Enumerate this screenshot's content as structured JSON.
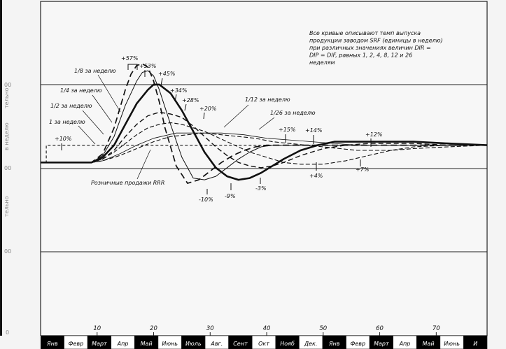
{
  "chart_data": {
    "type": "line",
    "note": "Все кривые описывают темп выпуска продукции заводом SRF (единицы в неделю) при различных значениях величин DIR = DIP = DIF, равных 1, 2, 4, 8, 12 и 26 неделям",
    "y_tick_labels": [
      "0",
      "00",
      "00",
      "00"
    ],
    "y_axis_fragments": [
      "в неделю",
      "тельно",
      "тельно"
    ],
    "x_ticks": [
      10,
      20,
      30,
      40,
      50,
      60,
      70
    ],
    "xlim": [
      0,
      79
    ],
    "ylim": [
      0,
      1.93
    ],
    "months": [
      "Янв",
      "Февр",
      "Март",
      "Апр",
      "Май",
      "Июнь",
      "Июль",
      "Авг.",
      "Сент",
      "Окт",
      "Нояб",
      "Дек.",
      "Янв",
      "Февр",
      "Март",
      "Апр",
      "Май",
      "Июнь",
      "И"
    ],
    "month_colors": [
      "#000000",
      "#ffffff"
    ],
    "retail_label": "Розничные продажи RRR",
    "series": [
      {
        "name": "1/8 за неделю",
        "style": "dashed-long",
        "x": [
          0,
          7,
          9,
          11,
          13,
          15,
          16,
          17,
          18,
          19,
          20,
          21,
          22,
          24,
          26,
          28,
          30,
          32,
          34,
          36,
          38,
          40,
          44,
          48,
          52,
          56,
          60,
          66,
          72,
          79
        ],
        "y": [
          1.0,
          1.0,
          1.0,
          1.05,
          1.2,
          1.42,
          1.51,
          1.56,
          1.57,
          1.55,
          1.47,
          1.35,
          1.2,
          0.98,
          0.88,
          0.9,
          0.95,
          1.0,
          1.04,
          1.07,
          1.09,
          1.1,
          1.1,
          1.1,
          1.1,
          1.1,
          1.1,
          1.1,
          1.1,
          1.1
        ]
      },
      {
        "name": "1/4 за неделю",
        "style": "solid-thin",
        "x": [
          0,
          7,
          9,
          11,
          13,
          15,
          17,
          18,
          19,
          20,
          21,
          23,
          25,
          27,
          29,
          31,
          33,
          35,
          37,
          39,
          41,
          44,
          48,
          52,
          56,
          60,
          66,
          72,
          79
        ],
        "y": [
          1.0,
          1.0,
          1.0,
          1.04,
          1.15,
          1.33,
          1.47,
          1.52,
          1.53,
          1.5,
          1.42,
          1.22,
          1.03,
          0.91,
          0.9,
          0.92,
          0.97,
          1.02,
          1.06,
          1.09,
          1.1,
          1.1,
          1.1,
          1.1,
          1.1,
          1.1,
          1.1,
          1.1,
          1.1
        ]
      },
      {
        "name": "1/2 за неделю",
        "style": "solid-thick",
        "x": [
          0,
          7,
          9,
          11,
          13,
          15,
          17,
          19,
          20,
          21,
          23,
          25,
          27,
          29,
          31,
          33,
          35,
          37,
          39,
          41,
          43,
          46,
          49,
          52,
          55,
          58,
          62,
          66,
          72,
          79
        ],
        "y": [
          1.0,
          1.0,
          1.0,
          1.03,
          1.1,
          1.22,
          1.34,
          1.42,
          1.45,
          1.45,
          1.4,
          1.3,
          1.18,
          1.06,
          0.97,
          0.92,
          0.9,
          0.91,
          0.94,
          0.98,
          1.02,
          1.07,
          1.1,
          1.12,
          1.12,
          1.12,
          1.12,
          1.12,
          1.11,
          1.1
        ]
      },
      {
        "name": "1 за неделю",
        "style": "dashed",
        "x": [
          0,
          7,
          9,
          11,
          13,
          15,
          17,
          19,
          21,
          23,
          25,
          27,
          29,
          31,
          33,
          35,
          37,
          39,
          41,
          43,
          46,
          50,
          54,
          58,
          62,
          66,
          72,
          79
        ],
        "y": [
          1.0,
          1.0,
          1.0,
          1.02,
          1.07,
          1.15,
          1.22,
          1.27,
          1.29,
          1.28,
          1.26,
          1.21,
          1.15,
          1.09,
          1.04,
          1.0,
          0.98,
          0.97,
          0.98,
          1.0,
          1.04,
          1.08,
          1.1,
          1.11,
          1.11,
          1.11,
          1.1,
          1.1
        ]
      },
      {
        "name": "1/12 за неделю",
        "style": "dashed-short",
        "x": [
          0,
          7,
          9,
          11,
          13,
          15,
          17,
          19,
          21,
          23,
          25,
          27,
          29,
          31,
          33,
          35,
          37,
          40,
          43,
          46,
          50,
          54,
          58,
          62,
          66,
          72,
          79
        ],
        "y": [
          1.0,
          1.0,
          1.0,
          1.02,
          1.06,
          1.11,
          1.16,
          1.2,
          1.22,
          1.23,
          1.22,
          1.2,
          1.18,
          1.15,
          1.12,
          1.09,
          1.06,
          1.03,
          1.0,
          0.99,
          0.99,
          1.01,
          1.04,
          1.07,
          1.09,
          1.1,
          1.1
        ]
      },
      {
        "name": "1/26 за неделю",
        "style": "dashed-short",
        "x": [
          0,
          7,
          9,
          11,
          14,
          17,
          20,
          23,
          26,
          29,
          32,
          35,
          38,
          41,
          44,
          47,
          50,
          53,
          56,
          59,
          62,
          66,
          72,
          79
        ],
        "y": [
          1.0,
          1.0,
          1.0,
          1.01,
          1.04,
          1.08,
          1.12,
          1.15,
          1.16,
          1.17,
          1.16,
          1.15,
          1.14,
          1.12,
          1.11,
          1.1,
          1.09,
          1.08,
          1.07,
          1.07,
          1.07,
          1.08,
          1.09,
          1.1
        ]
      },
      {
        "name": "Розничные продажи RRR",
        "style": "dotted-step",
        "x": [
          0,
          1,
          1,
          79
        ],
        "y": [
          1.0,
          1.0,
          1.1,
          1.1
        ]
      },
      {
        "name": "Розничные продажи RRR (thin)",
        "style": "solid-hair",
        "x": [
          0,
          7,
          9,
          11,
          14,
          17,
          20,
          24,
          28,
          32,
          36,
          40,
          44,
          48,
          52,
          56,
          60,
          66,
          72,
          79
        ],
        "y": [
          1.0,
          1.0,
          1.0,
          1.01,
          1.05,
          1.1,
          1.14,
          1.17,
          1.17,
          1.17,
          1.16,
          1.14,
          1.13,
          1.12,
          1.11,
          1.1,
          1.1,
          1.1,
          1.1,
          1.1
        ]
      }
    ],
    "annotations": [
      {
        "text": "+57%"
      },
      {
        "text": "+53%"
      },
      {
        "text": "+45%"
      },
      {
        "text": "+34%"
      },
      {
        "text": "+28%"
      },
      {
        "text": "+20%"
      },
      {
        "text": "+15%"
      },
      {
        "text": "+14%"
      },
      {
        "text": "+12%"
      },
      {
        "text": "+10%"
      },
      {
        "text": "-10%"
      },
      {
        "text": "-9%"
      },
      {
        "text": "-3%"
      },
      {
        "text": "+4%"
      },
      {
        "text": "+7%"
      }
    ],
    "series_labels": [
      "1/8 за неделю",
      "1/4 за неделю",
      "1/2 за неделю",
      "1 за неделю",
      "1/12 за неделю",
      "1/26 за неделю"
    ]
  }
}
